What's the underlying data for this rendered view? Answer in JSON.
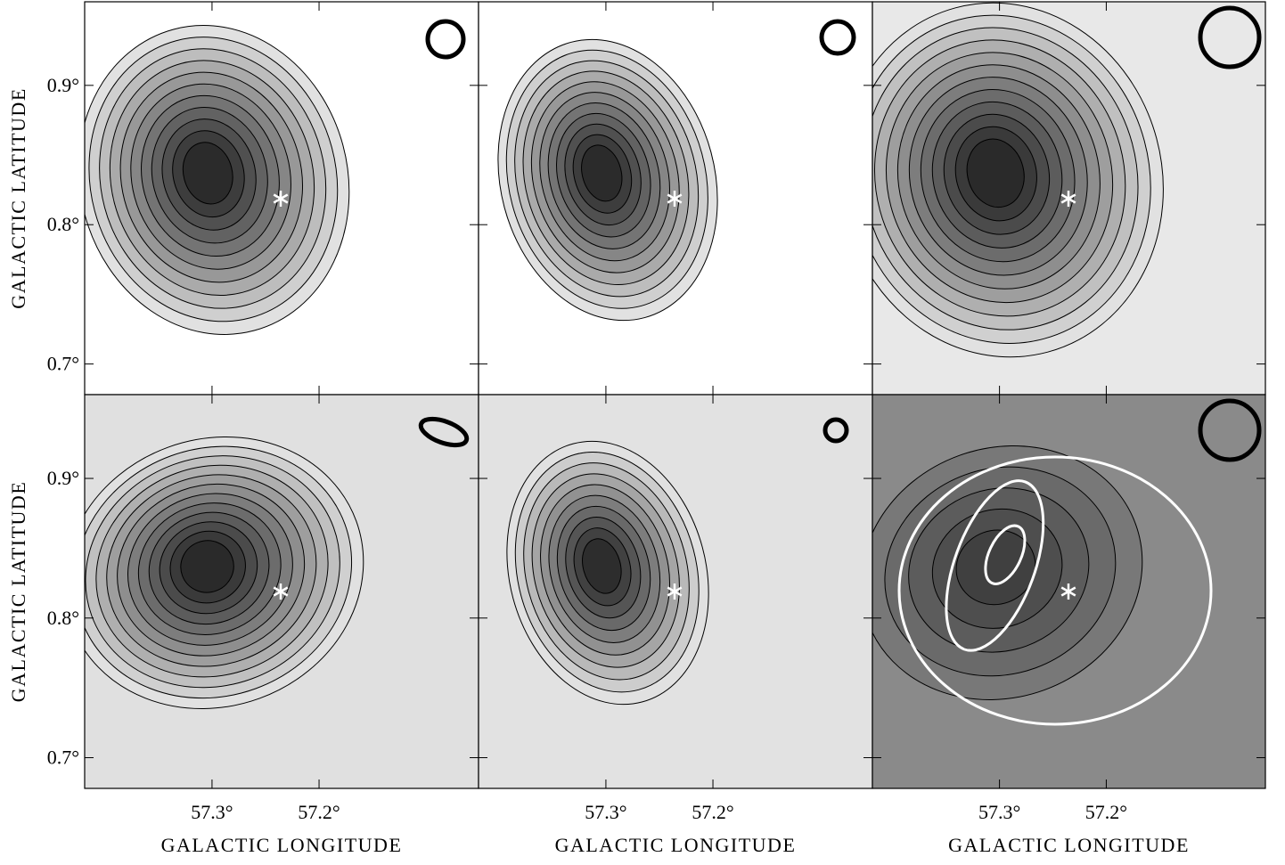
{
  "figure": {
    "x_label": "GALACTIC LONGITUDE",
    "y_label": "GALACTIC LATITUDE",
    "xlim": [
      57.419,
      57.051
    ],
    "ylim": [
      0.678,
      0.96
    ],
    "xticks": [
      {
        "value": 57.3,
        "label": "57.3°"
      },
      {
        "value": 57.2,
        "label": "57.2°"
      }
    ],
    "yticks": [
      {
        "value": 0.9,
        "label": "0.9°"
      },
      {
        "value": 0.8,
        "label": "0.8°"
      },
      {
        "value": 0.7,
        "label": "0.7°"
      }
    ]
  }
}
